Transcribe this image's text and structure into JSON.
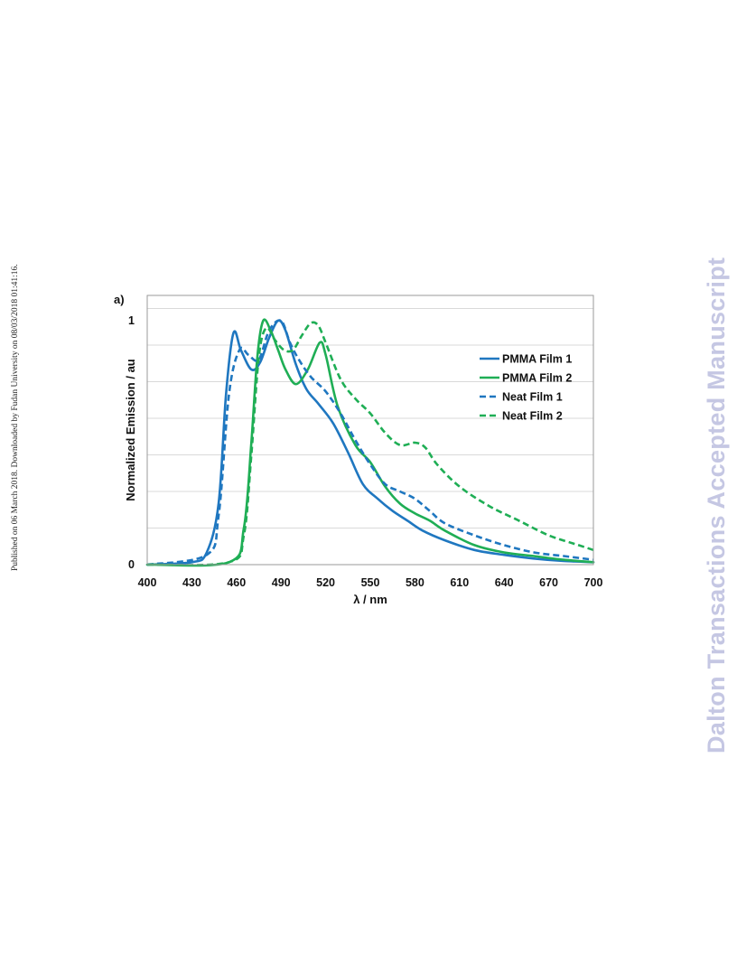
{
  "side_note": "Published on 06 March 2018. Downloaded by Fudan University on 08/03/2018 01:41:16.",
  "watermark": "Dalton Transactions Accepted Manuscript",
  "chart_data": {
    "type": "line",
    "panel_label": "a)",
    "title": "",
    "xlabel": "λ / nm",
    "ylabel": "Normalized Emission / au",
    "xlim": [
      400,
      700
    ],
    "ylim": [
      0,
      1.1
    ],
    "x_ticks": [
      400,
      430,
      460,
      490,
      520,
      550,
      580,
      610,
      640,
      670,
      700
    ],
    "y_ticks": [
      {
        "value": 0,
        "label": "0"
      },
      {
        "value": 1,
        "label": "1"
      }
    ],
    "grid": "horizontal",
    "legend_position": "right",
    "series": [
      {
        "name": "PMMA Film 1",
        "color": "#1f77c0",
        "style": "solid",
        "x": [
          400,
          430,
          440,
          448,
          453,
          458,
          463,
          470,
          476,
          482,
          488,
          493,
          500,
          507,
          515,
          525,
          535,
          545,
          555,
          565,
          575,
          585,
          600,
          620,
          640,
          660,
          680,
          700
        ],
        "y": [
          0,
          0.01,
          0.05,
          0.25,
          0.7,
          0.95,
          0.88,
          0.8,
          0.83,
          0.93,
          1.0,
          0.96,
          0.82,
          0.72,
          0.66,
          0.58,
          0.46,
          0.33,
          0.27,
          0.22,
          0.18,
          0.14,
          0.1,
          0.06,
          0.04,
          0.025,
          0.015,
          0.01
        ]
      },
      {
        "name": "PMMA Film 2",
        "color": "#1fae55",
        "style": "solid",
        "x": [
          400,
          455,
          465,
          470,
          474,
          478,
          483,
          488,
          493,
          500,
          508,
          516,
          520,
          528,
          540,
          550,
          560,
          570,
          580,
          590,
          600,
          620,
          640,
          660,
          680,
          700
        ],
        "y": [
          0,
          0.01,
          0.15,
          0.5,
          0.85,
          1.0,
          0.96,
          0.88,
          0.8,
          0.74,
          0.8,
          0.91,
          0.86,
          0.65,
          0.49,
          0.42,
          0.32,
          0.25,
          0.21,
          0.18,
          0.14,
          0.08,
          0.05,
          0.035,
          0.02,
          0.01
        ]
      },
      {
        "name": "Neat Film 1",
        "color": "#1f77c0",
        "style": "dashed",
        "x": [
          400,
          440,
          448,
          455,
          462,
          468,
          475,
          482,
          490,
          496,
          502,
          510,
          520,
          530,
          540,
          550,
          560,
          570,
          580,
          590,
          600,
          620,
          640,
          660,
          680,
          700
        ],
        "y": [
          0,
          0.04,
          0.2,
          0.7,
          0.88,
          0.86,
          0.84,
          0.96,
          1.0,
          0.91,
          0.84,
          0.77,
          0.71,
          0.62,
          0.51,
          0.41,
          0.33,
          0.3,
          0.27,
          0.22,
          0.17,
          0.12,
          0.08,
          0.05,
          0.035,
          0.02
        ]
      },
      {
        "name": "Neat Film 2",
        "color": "#1fae55",
        "style": "dashed",
        "x": [
          400,
          455,
          465,
          470,
          475,
          480,
          486,
          492,
          498,
          504,
          510,
          515,
          520,
          530,
          540,
          550,
          560,
          570,
          580,
          587,
          595,
          610,
          630,
          650,
          670,
          690,
          700
        ],
        "y": [
          0,
          0.01,
          0.12,
          0.45,
          0.85,
          0.97,
          0.92,
          0.88,
          0.88,
          0.94,
          0.99,
          0.98,
          0.91,
          0.76,
          0.68,
          0.62,
          0.54,
          0.49,
          0.5,
          0.48,
          0.41,
          0.32,
          0.24,
          0.18,
          0.12,
          0.08,
          0.06
        ]
      }
    ]
  }
}
